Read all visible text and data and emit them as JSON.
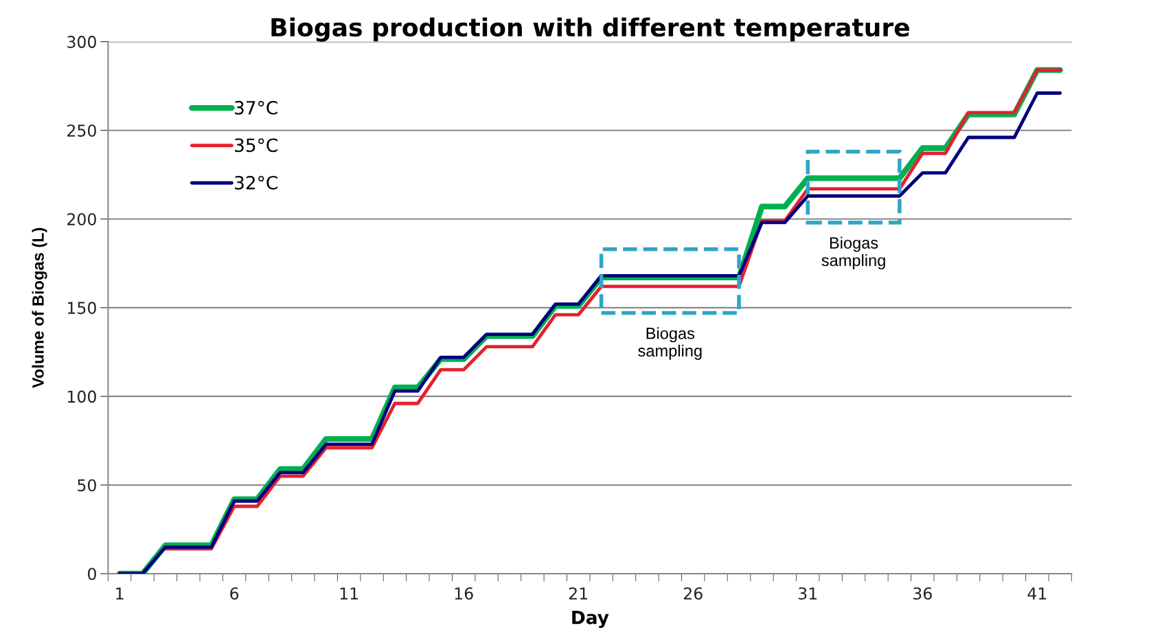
{
  "chart_data": {
    "type": "line",
    "title": "Biogas production with different temperature",
    "xlabel": "Day",
    "ylabel": "Volume of Biogas (L)",
    "x": [
      1,
      2,
      3,
      4,
      5,
      6,
      7,
      8,
      9,
      10,
      11,
      12,
      13,
      14,
      15,
      16,
      17,
      18,
      19,
      20,
      21,
      22,
      23,
      24,
      25,
      26,
      27,
      28,
      29,
      30,
      31,
      32,
      33,
      34,
      35,
      36,
      37,
      38,
      39,
      40,
      41,
      42
    ],
    "series": [
      {
        "name": "37°C",
        "color": "#00b050",
        "values": [
          0,
          0,
          16,
          16,
          16,
          42,
          42,
          59,
          59,
          76,
          76,
          76,
          105,
          105,
          121,
          121,
          134,
          134,
          134,
          151,
          151,
          167,
          167,
          167,
          167,
          167,
          167,
          167,
          207,
          207,
          223,
          223,
          223,
          223,
          223,
          240,
          240,
          259,
          259,
          259,
          284,
          284
        ]
      },
      {
        "name": "35°C",
        "color": "#e3212d",
        "values": [
          null,
          null,
          14,
          14,
          14,
          38,
          38,
          55,
          55,
          71,
          71,
          71,
          96,
          96,
          115,
          115,
          128,
          128,
          128,
          146,
          146,
          162,
          162,
          162,
          162,
          162,
          162,
          162,
          199,
          199,
          217,
          217,
          217,
          217,
          217,
          237,
          237,
          260,
          260,
          260,
          284,
          284
        ]
      },
      {
        "name": "32°C",
        "color": "#000080",
        "values": [
          0,
          0,
          15,
          15,
          15,
          41,
          41,
          57,
          57,
          73,
          73,
          73,
          103,
          103,
          122,
          122,
          135,
          135,
          135,
          152,
          152,
          168,
          168,
          168,
          168,
          168,
          168,
          168,
          198,
          198,
          213,
          213,
          213,
          213,
          213,
          226,
          226,
          246,
          246,
          246,
          271,
          271
        ]
      }
    ],
    "xlim": [
      0.5,
      42.5
    ],
    "xticks": [
      1,
      6,
      11,
      16,
      21,
      26,
      31,
      36,
      41
    ],
    "ylim": [
      0,
      300
    ],
    "yticks": [
      0,
      50,
      100,
      150,
      200,
      250,
      300
    ],
    "grid": "y",
    "legend": "top left",
    "marker": "none",
    "line_style": "solid",
    "annotations": [
      "Biogas\nsampling",
      "Biogas\nsampling"
    ]
  }
}
